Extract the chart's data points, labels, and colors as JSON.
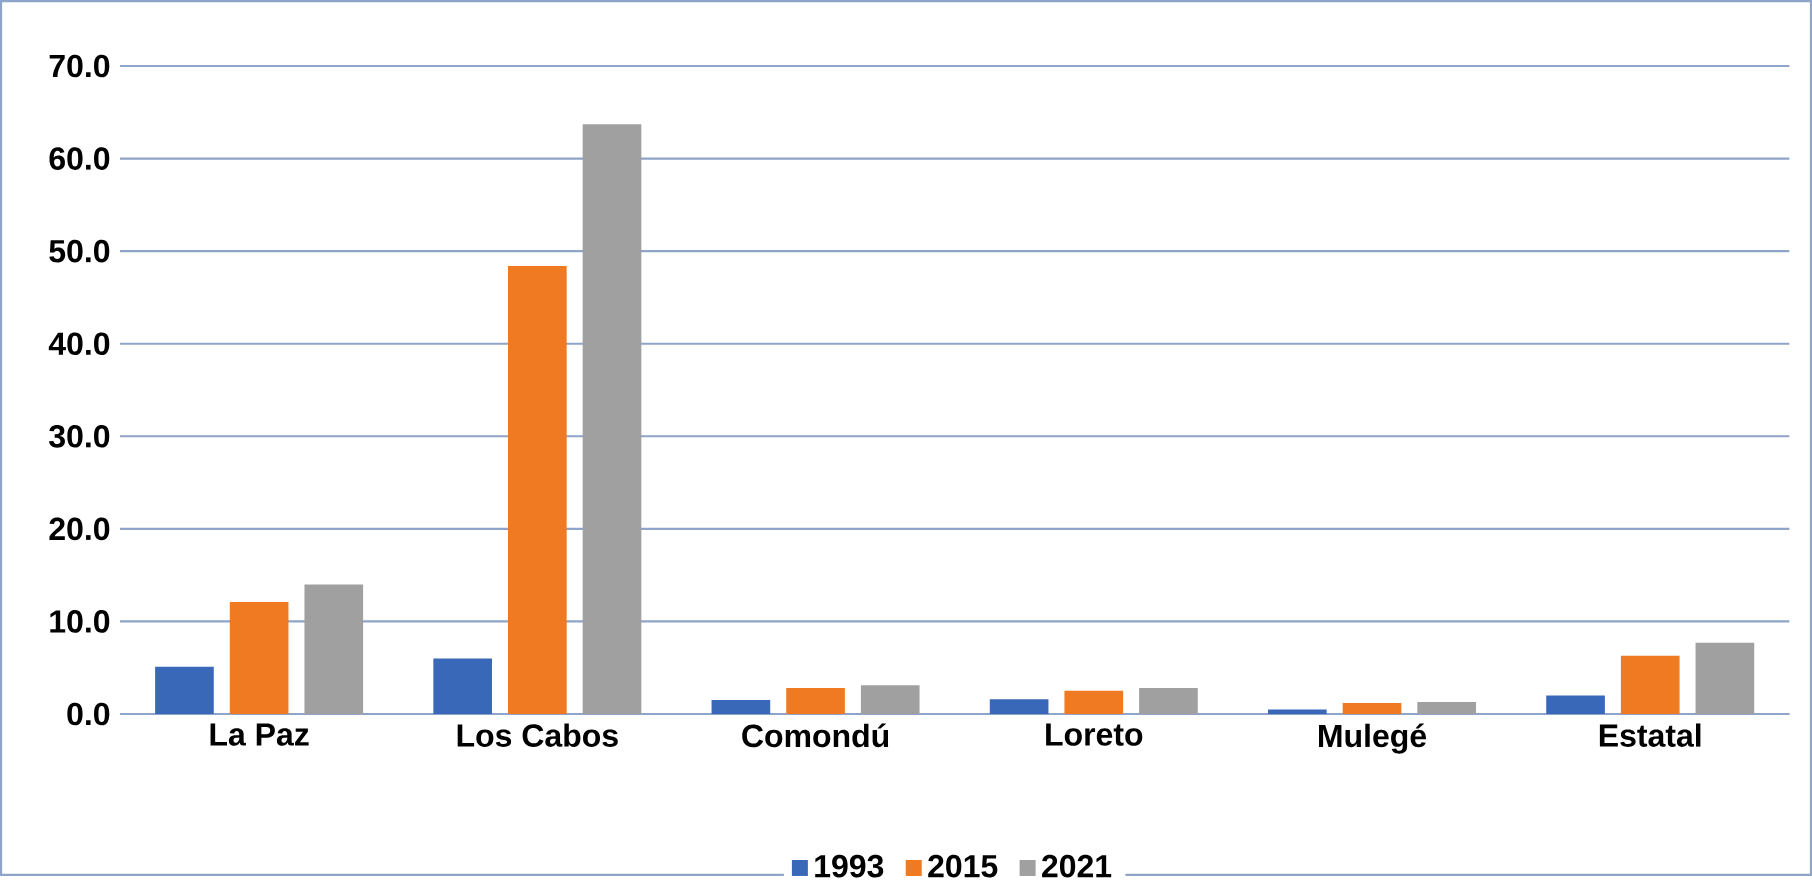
{
  "chart_data": {
    "type": "bar",
    "categories": [
      "La Paz",
      "Los Cabos",
      "Comondú",
      "Loreto",
      "Mulegé",
      "Estatal"
    ],
    "series": [
      {
        "name": "1993",
        "color": "#3a68b8",
        "values": [
          5.1,
          6.0,
          1.5,
          1.6,
          0.5,
          2.0
        ]
      },
      {
        "name": "2015",
        "color": "#f07a22",
        "values": [
          12.1,
          48.4,
          2.8,
          2.5,
          1.2,
          6.3
        ]
      },
      {
        "name": "2021",
        "color": "#a0a0a0",
        "values": [
          14.0,
          63.7,
          3.1,
          2.8,
          1.3,
          7.7
        ]
      }
    ],
    "ylim": [
      0,
      70
    ],
    "yticks": [
      {
        "value": 0,
        "label": "0.0"
      },
      {
        "value": 10,
        "label": "10.0"
      },
      {
        "value": 20,
        "label": "20.0"
      },
      {
        "value": 30,
        "label": "30.0"
      },
      {
        "value": 40,
        "label": "40.0"
      },
      {
        "value": 50,
        "label": "50.0"
      },
      {
        "value": 60,
        "label": "60.0"
      },
      {
        "value": 70,
        "label": "70.0"
      }
    ],
    "grid": "y",
    "legend": "bottom"
  }
}
